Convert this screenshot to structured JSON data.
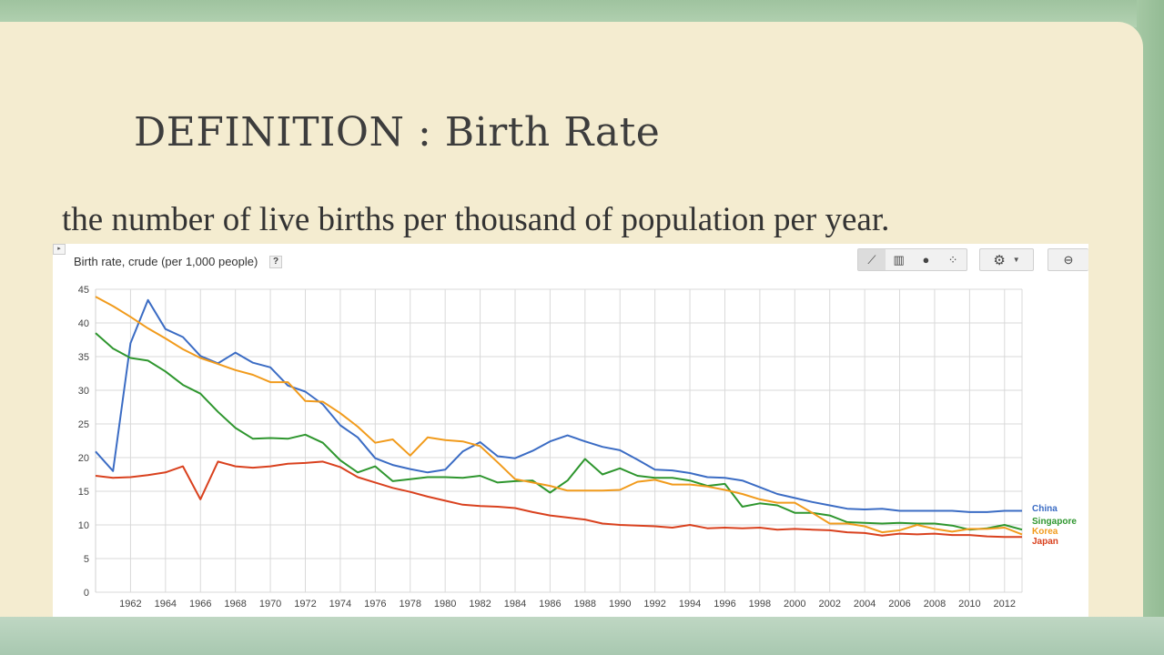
{
  "slide": {
    "title": "DEFINITION : Birth Rate",
    "definition": "the number of live births per thousand of population per year."
  },
  "widget": {
    "collapse_glyph": "▸",
    "help_label": "?",
    "toolbar": {
      "views": [
        {
          "name": "line-chart-icon",
          "glyph": "⟋",
          "selected": true
        },
        {
          "name": "bar-chart-icon",
          "glyph": "▥",
          "selected": false
        },
        {
          "name": "globe-icon",
          "glyph": "●",
          "selected": false
        },
        {
          "name": "scatter-icon",
          "glyph": "⁘",
          "selected": false
        }
      ],
      "settings_glyph": "⚙",
      "dropdown_glyph": "▼",
      "link_glyph": "⊖"
    }
  },
  "chart_data": {
    "type": "line",
    "title": "Birth rate, crude (per 1,000 people)",
    "xlabel": "",
    "ylabel": "",
    "xlim": [
      1960,
      2013
    ],
    "ylim": [
      0,
      45
    ],
    "yticks": [
      0,
      5,
      10,
      15,
      20,
      25,
      30,
      35,
      40,
      45
    ],
    "xticks": [
      1962,
      1964,
      1966,
      1968,
      1970,
      1972,
      1974,
      1976,
      1978,
      1980,
      1982,
      1984,
      1986,
      1988,
      1990,
      1992,
      1994,
      1996,
      1998,
      2000,
      2002,
      2004,
      2006,
      2008,
      2010,
      2012
    ],
    "grid": true,
    "legend": "right",
    "x": [
      1960,
      1961,
      1962,
      1963,
      1964,
      1965,
      1966,
      1967,
      1968,
      1969,
      1970,
      1971,
      1972,
      1973,
      1974,
      1975,
      1976,
      1977,
      1978,
      1979,
      1980,
      1981,
      1982,
      1983,
      1984,
      1985,
      1986,
      1987,
      1988,
      1989,
      1990,
      1991,
      1992,
      1993,
      1994,
      1995,
      1996,
      1997,
      1998,
      1999,
      2000,
      2001,
      2002,
      2003,
      2004,
      2005,
      2006,
      2007,
      2008,
      2009,
      2010,
      2011,
      2012,
      2013
    ],
    "series": [
      {
        "name": "China",
        "color": "#3b6cc4",
        "values": [
          20.9,
          18.0,
          37.0,
          43.4,
          39.1,
          37.9,
          35.1,
          34.0,
          35.6,
          34.1,
          33.4,
          30.7,
          29.8,
          27.9,
          24.8,
          23.0,
          19.9,
          18.9,
          18.3,
          17.8,
          18.2,
          20.9,
          22.3,
          20.2,
          19.9,
          21.0,
          22.4,
          23.3,
          22.4,
          21.6,
          21.1,
          19.7,
          18.2,
          18.1,
          17.7,
          17.1,
          17.0,
          16.6,
          15.6,
          14.6,
          14.0,
          13.4,
          12.9,
          12.4,
          12.3,
          12.4,
          12.1,
          12.1,
          12.1,
          12.1,
          11.9,
          11.9,
          12.1,
          12.1
        ]
      },
      {
        "name": "Singapore",
        "color": "#2e962e",
        "values": [
          38.5,
          36.2,
          34.8,
          34.4,
          32.8,
          30.8,
          29.5,
          26.8,
          24.4,
          22.8,
          22.9,
          22.8,
          23.4,
          22.2,
          19.6,
          17.8,
          18.7,
          16.5,
          16.8,
          17.1,
          17.1,
          17.0,
          17.3,
          16.3,
          16.5,
          16.6,
          14.8,
          16.6,
          19.8,
          17.5,
          18.4,
          17.3,
          17.0,
          17.0,
          16.6,
          15.8,
          16.1,
          12.7,
          13.2,
          12.9,
          11.8,
          11.8,
          11.4,
          10.4,
          10.3,
          10.2,
          10.3,
          10.2,
          10.2,
          9.9,
          9.3,
          9.5,
          10.0,
          9.3
        ]
      },
      {
        "name": "Korea",
        "color": "#f19b1c",
        "values": [
          43.9,
          42.5,
          40.9,
          39.2,
          37.7,
          36.1,
          34.8,
          33.9,
          33.0,
          32.3,
          31.2,
          31.2,
          28.4,
          28.3,
          26.6,
          24.6,
          22.2,
          22.7,
          20.3,
          23.0,
          22.6,
          22.4,
          21.7,
          19.3,
          16.8,
          16.3,
          15.8,
          15.1,
          15.1,
          15.1,
          15.2,
          16.4,
          16.7,
          16.0,
          16.0,
          15.7,
          15.2,
          14.6,
          13.8,
          13.3,
          13.3,
          11.8,
          10.2,
          10.2,
          9.8,
          8.9,
          9.2,
          10.0,
          9.4,
          9.0,
          9.4,
          9.4,
          9.6,
          8.6
        ]
      },
      {
        "name": "Japan",
        "color": "#d9411e",
        "values": [
          17.3,
          17.0,
          17.1,
          17.4,
          17.8,
          18.7,
          13.8,
          19.4,
          18.7,
          18.5,
          18.7,
          19.1,
          19.2,
          19.4,
          18.6,
          17.1,
          16.3,
          15.5,
          14.9,
          14.2,
          13.6,
          13.0,
          12.8,
          12.7,
          12.5,
          11.9,
          11.4,
          11.1,
          10.8,
          10.2,
          10.0,
          9.9,
          9.8,
          9.6,
          10.0,
          9.5,
          9.6,
          9.5,
          9.6,
          9.3,
          9.4,
          9.3,
          9.2,
          8.9,
          8.8,
          8.4,
          8.7,
          8.6,
          8.7,
          8.5,
          8.5,
          8.3,
          8.2,
          8.2
        ]
      }
    ]
  }
}
